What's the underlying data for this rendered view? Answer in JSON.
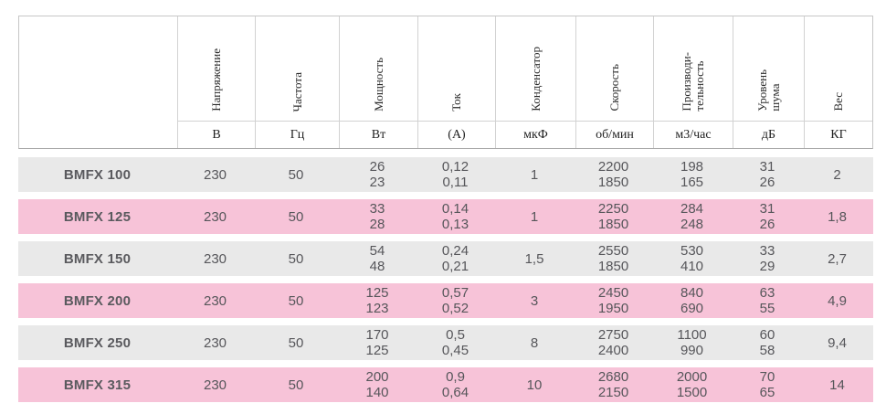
{
  "table": {
    "columns": [
      {
        "label": "",
        "unit": ""
      },
      {
        "label": "Напряжение",
        "unit": "В"
      },
      {
        "label": "Частота",
        "unit": "Гц"
      },
      {
        "label": "Мощность",
        "unit": "Вт"
      },
      {
        "label": "Ток",
        "unit": "(А)"
      },
      {
        "label": "Конденсатор",
        "unit": "мкФ"
      },
      {
        "label": "Скорость",
        "unit": "об/мин"
      },
      {
        "label": "Производи-\nтельность",
        "unit": "м3/час"
      },
      {
        "label": "Уровень\nшума",
        "unit": "дБ"
      },
      {
        "label": "Вес",
        "unit": "КГ"
      }
    ],
    "rows": [
      {
        "model": "BMFX 100",
        "voltage": "230",
        "frequency": "50",
        "power": "26\n23",
        "current": "0,12\n0,11",
        "capacitor": "1",
        "speed": "2200\n1850",
        "airflow": "198\n165",
        "noise": "31\n26",
        "weight": "2"
      },
      {
        "model": "BMFX 125",
        "voltage": "230",
        "frequency": "50",
        "power": "33\n28",
        "current": "0,14\n0,13",
        "capacitor": "1",
        "speed": "2250\n1850",
        "airflow": "284\n248",
        "noise": "31\n26",
        "weight": "1,8"
      },
      {
        "model": "BMFX 150",
        "voltage": "230",
        "frequency": "50",
        "power": "54\n48",
        "current": "0,24\n0,21",
        "capacitor": "1,5",
        "speed": "2550\n1850",
        "airflow": "530\n410",
        "noise": "33\n29",
        "weight": "2,7"
      },
      {
        "model": "BMFX 200",
        "voltage": "230",
        "frequency": "50",
        "power": "125\n123",
        "current": "0,57\n0,52",
        "capacitor": "3",
        "speed": "2450\n1950",
        "airflow": "840\n690",
        "noise": "63\n55",
        "weight": "4,9"
      },
      {
        "model": "BMFX 250",
        "voltage": "230",
        "frequency": "50",
        "power": "170\n125",
        "current": "0,5\n0,45",
        "capacitor": "8",
        "speed": "2750\n2400",
        "airflow": "1100\n990",
        "noise": "60\n58",
        "weight": "9,4"
      },
      {
        "model": "BMFX 315",
        "voltage": "230",
        "frequency": "50",
        "power": "200\n140",
        "current": "0,9\n0,64",
        "capacitor": "10",
        "speed": "2680\n2150",
        "airflow": "2000\n1500",
        "noise": "70\n65",
        "weight": "14"
      }
    ]
  },
  "colors": {
    "row_gray": "#e9e9e9",
    "row_pink": "#f7c3d8",
    "header_border": "#c6c6c6",
    "text": "#56565a"
  }
}
